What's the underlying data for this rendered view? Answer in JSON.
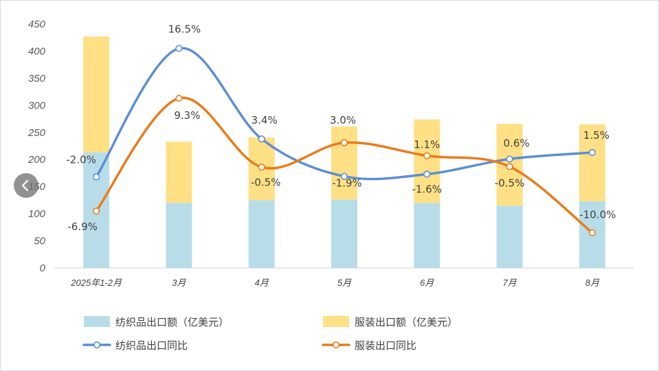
{
  "chart_data": {
    "type": "bar",
    "stacked": true,
    "categories": [
      "2025年1-2月",
      "3月",
      "4月",
      "5月",
      "6月",
      "7月",
      "8月"
    ],
    "ylim": [
      0,
      450
    ],
    "yticks": [
      0,
      50,
      100,
      150,
      200,
      250,
      300,
      350,
      400,
      450
    ],
    "grid": false,
    "legend_position": "bottom",
    "bar_series": [
      {
        "name": "纺织品出口额（亿美元）",
        "color": "#b8dde9",
        "values": [
          213,
          120,
          125,
          126,
          120,
          115,
          123
        ]
      },
      {
        "name": "服装出口额（亿美元）",
        "color": "#ffe085",
        "values": [
          214,
          113,
          116,
          135,
          154,
          151,
          142
        ]
      }
    ],
    "line_series": [
      {
        "name": "纺织品出口同比",
        "color": "#5b8fd4",
        "plot_values": [
          168,
          405,
          238,
          169,
          173,
          201,
          213
        ],
        "labels": [
          "-2.0%",
          "16.5%",
          "3.4%",
          "-1.9%",
          "-1.6%",
          "0.6%",
          "1.5%"
        ]
      },
      {
        "name": "服装出口同比",
        "color": "#e97b1c",
        "plot_values": [
          105,
          313,
          186,
          231,
          207,
          187,
          65
        ],
        "labels": [
          "-6.9%",
          "9.3%",
          "-0.5%",
          "3.0%",
          "1.1%",
          "-0.5%",
          "-10.0%"
        ]
      }
    ]
  },
  "nav": {
    "prev_icon": "chevron-left-icon"
  }
}
